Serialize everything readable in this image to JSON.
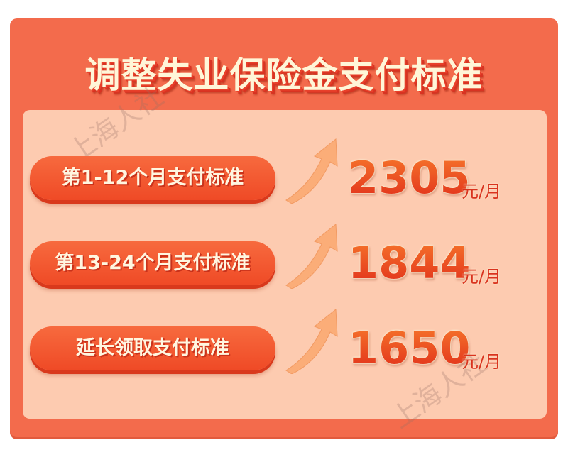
{
  "title": "调整失业保险金支付标准",
  "watermark": "上海人社",
  "colors": {
    "outer": "#f36b4c",
    "panel": "#fdcbb0",
    "pill": "#ef4a26",
    "number": "#e8401f",
    "title_text": "#fff6d8"
  },
  "rows": [
    {
      "label": "第1-12个月支付标准",
      "value": "2305",
      "unit": "元/月",
      "icon": "arrow-up-right-icon"
    },
    {
      "label": "第13-24个月支付标准",
      "value": "1844",
      "unit": "元/月",
      "icon": "arrow-up-right-icon"
    },
    {
      "label": "延长领取支付标准",
      "value": "1650",
      "unit": "元/月",
      "icon": "arrow-up-right-icon"
    }
  ]
}
